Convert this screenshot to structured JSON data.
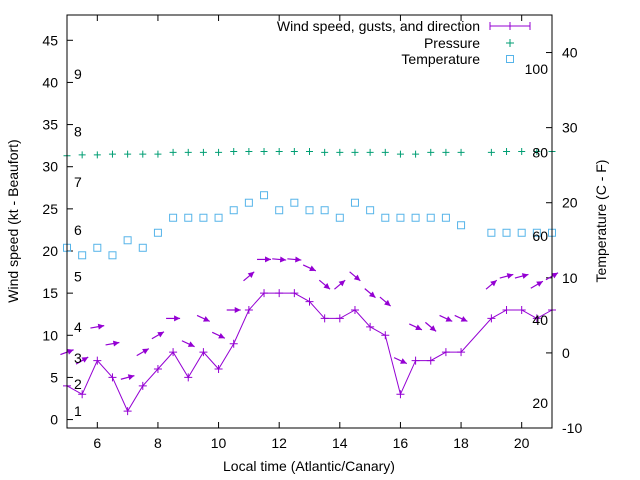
{
  "chart_data": {
    "type": "line",
    "xlabel": "Local time (Atlantic/Canary)",
    "ylabel": "Wind speed (kt - Beaufort)",
    "y2label": "Temperature (C - F)",
    "xlim": [
      5,
      21
    ],
    "ylim": [
      -1,
      48
    ],
    "y2lim": [
      -10,
      45
    ],
    "x_ticks": [
      6,
      8,
      10,
      12,
      14,
      16,
      18,
      20
    ],
    "y_ticks": [
      0,
      5,
      10,
      15,
      20,
      25,
      30,
      35,
      40,
      45
    ],
    "y2_ticks": [
      -10,
      0,
      10,
      20,
      30,
      40
    ],
    "beaufort_labels": [
      {
        "label": "1",
        "kt": 1
      },
      {
        "label": "2",
        "kt": 4.2
      },
      {
        "label": "3",
        "kt": 7.3
      },
      {
        "label": "4",
        "kt": 11
      },
      {
        "label": "5",
        "kt": 17
      },
      {
        "label": "6",
        "kt": 22.5
      },
      {
        "label": "7",
        "kt": 28.2
      },
      {
        "label": "8",
        "kt": 34.2
      },
      {
        "label": "9",
        "kt": 41
      }
    ],
    "fahrenheit_labels": [
      {
        "label": "20",
        "c": -6.7
      },
      {
        "label": "40",
        "c": 4.4
      },
      {
        "label": "60",
        "c": 15.6
      },
      {
        "label": "80",
        "c": 26.7
      },
      {
        "label": "100",
        "c": 37.8
      }
    ],
    "legend": {
      "position": "top-right",
      "entries": [
        "Wind speed, gusts, and direction",
        "Pressure",
        "Temperature"
      ]
    },
    "series": [
      {
        "name": "Wind speed, gusts, and direction",
        "color": "#9400d3",
        "x": [
          5,
          5.5,
          6,
          6.5,
          7,
          7.5,
          8,
          8.5,
          9,
          9.5,
          10,
          10.5,
          11,
          11.5,
          12,
          12.5,
          13,
          13.5,
          14,
          14.5,
          15,
          15.5,
          16,
          16.5,
          17,
          17.5,
          18,
          19,
          19.5,
          20,
          20.5,
          21
        ],
        "y": [
          4,
          3,
          7,
          5,
          1,
          4,
          6,
          8,
          5,
          8,
          6,
          9,
          13,
          15,
          15,
          15,
          14,
          12,
          12,
          13,
          11,
          10,
          3,
          7,
          7,
          8,
          8,
          12,
          13,
          13,
          12,
          13
        ],
        "gusts": [
          8,
          7,
          11,
          9,
          5,
          8,
          10,
          12,
          9,
          12,
          10,
          13,
          17,
          19,
          19,
          19,
          18,
          16,
          16,
          17,
          15,
          14,
          7,
          11,
          11,
          12,
          12,
          16,
          17,
          17,
          16,
          17
        ],
        "direction_deg": [
          70,
          60,
          80,
          80,
          75,
          60,
          60,
          90,
          115,
          115,
          115,
          90,
          50,
          90,
          95,
          95,
          115,
          130,
          50,
          130,
          130,
          130,
          115,
          115,
          130,
          115,
          115,
          50,
          75,
          75,
          60,
          60
        ]
      },
      {
        "name": "Pressure",
        "color": "#009e73",
        "x": [
          5,
          5.5,
          6,
          6.5,
          7,
          7.5,
          8,
          8.5,
          9,
          9.5,
          10,
          10.5,
          11,
          11.5,
          12,
          12.5,
          13,
          13.5,
          14,
          14.5,
          15,
          15.5,
          16,
          16.5,
          17,
          17.5,
          18,
          19,
          19.5,
          20,
          20.5,
          21
        ],
        "y": [
          31.3,
          31.4,
          31.4,
          31.5,
          31.5,
          31.5,
          31.5,
          31.7,
          31.7,
          31.7,
          31.7,
          31.8,
          31.8,
          31.8,
          31.8,
          31.8,
          31.8,
          31.7,
          31.7,
          31.7,
          31.7,
          31.7,
          31.5,
          31.5,
          31.7,
          31.7,
          31.7,
          31.7,
          31.8,
          31.8,
          31.8,
          31.8
        ]
      },
      {
        "name": "Temperature",
        "color": "#56b4e9",
        "x": [
          5,
          5.5,
          6,
          6.5,
          7,
          7.5,
          8,
          8.5,
          9,
          9.5,
          10,
          10.5,
          11,
          11.5,
          12,
          12.5,
          13,
          13.5,
          14,
          14.5,
          15,
          15.5,
          16,
          16.5,
          17,
          17.5,
          18,
          19,
          19.5,
          20,
          20.5,
          21
        ],
        "y": [
          14,
          13,
          14,
          13,
          15,
          14,
          16,
          18,
          18,
          18,
          18,
          19,
          20,
          21,
          19,
          20,
          19,
          19,
          18,
          20,
          19,
          18,
          18,
          18,
          18,
          18,
          17,
          16,
          16,
          16,
          16,
          16
        ]
      }
    ]
  }
}
